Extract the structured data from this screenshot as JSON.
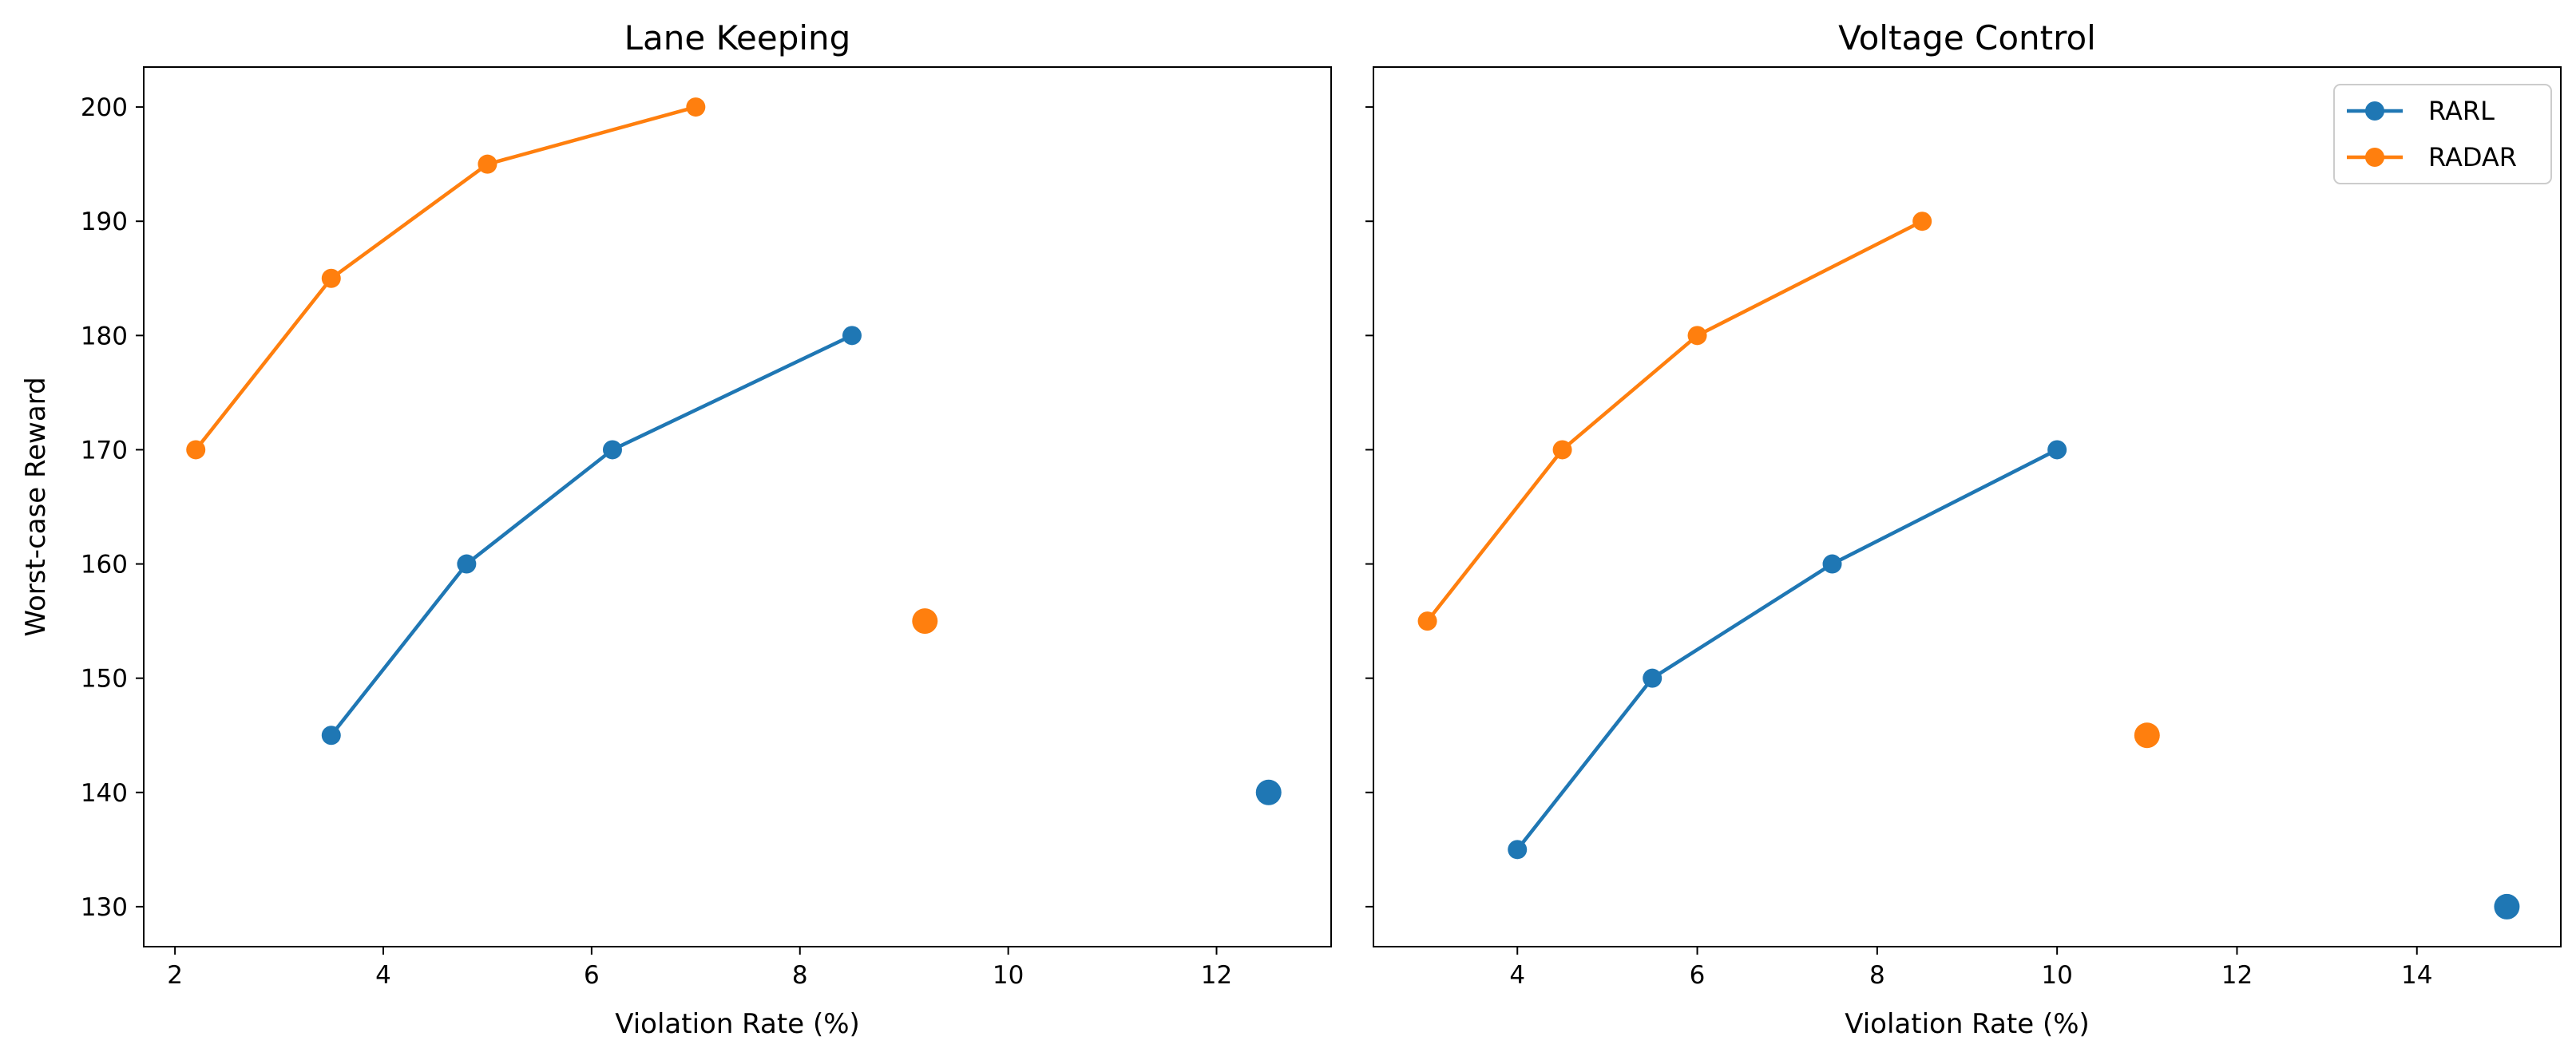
{
  "chart_data": [
    {
      "type": "line",
      "title": "Lane Keeping",
      "xlabel": "Violation Rate (%)",
      "ylabel": "Worst-case Reward",
      "xlim": [
        1.7,
        13.1
      ],
      "ylim": [
        126.5,
        203.5
      ],
      "xticks": [
        2,
        4,
        6,
        8,
        10,
        12
      ],
      "yticks": [
        130,
        140,
        150,
        160,
        170,
        180,
        190,
        200
      ],
      "grid": false,
      "series": [
        {
          "name": "RARL",
          "color": "#1f77b4",
          "x": [
            3.5,
            4.8,
            6.2,
            8.5
          ],
          "y": [
            145,
            160,
            170,
            180
          ]
        },
        {
          "name": "RADAR",
          "color": "#ff7f0e",
          "x": [
            2.2,
            3.5,
            5.0,
            7.0
          ],
          "y": [
            170,
            185,
            195,
            200
          ]
        }
      ],
      "extra_points": [
        {
          "series": "RARL",
          "color": "#1f77b4",
          "x": 12.5,
          "y": 140
        },
        {
          "series": "RADAR",
          "color": "#ff7f0e",
          "x": 9.2,
          "y": 155
        }
      ]
    },
    {
      "type": "line",
      "title": "Voltage Control",
      "xlabel": "Violation Rate (%)",
      "ylabel": "",
      "xlim": [
        2.4,
        15.6
      ],
      "ylim": [
        126.5,
        203.5
      ],
      "xticks": [
        4,
        6,
        8,
        10,
        12,
        14
      ],
      "yticks": [
        130,
        140,
        150,
        160,
        170,
        180,
        190,
        200
      ],
      "grid": false,
      "legend": "top-right",
      "series": [
        {
          "name": "RARL",
          "color": "#1f77b4",
          "x": [
            4.0,
            5.5,
            7.5,
            10.0
          ],
          "y": [
            135,
            150,
            160,
            170
          ]
        },
        {
          "name": "RADAR",
          "color": "#ff7f0e",
          "x": [
            3.0,
            4.5,
            6.0,
            8.5
          ],
          "y": [
            155,
            170,
            180,
            190
          ]
        }
      ],
      "extra_points": [
        {
          "series": "RARL",
          "color": "#1f77b4",
          "x": 15.0,
          "y": 130
        },
        {
          "series": "RADAR",
          "color": "#ff7f0e",
          "x": 11.0,
          "y": 145
        }
      ]
    }
  ]
}
